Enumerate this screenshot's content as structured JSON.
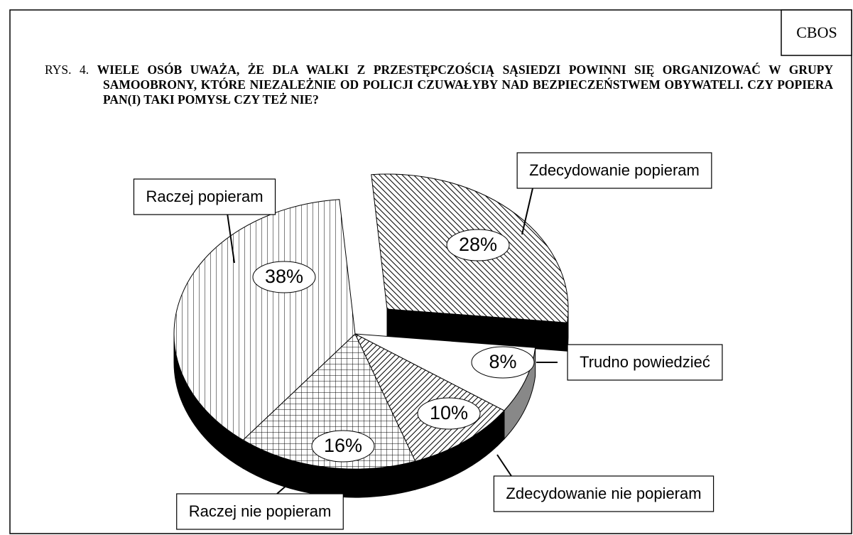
{
  "chart_data": {
    "type": "pie3d",
    "corner_label": "CBOS",
    "figure_label": "RYS. 4.",
    "title": "WIELE OSÓB UWAŻA, ŻE DLA WALKI Z PRZESTĘPCZOŚCIĄ SĄSIEDZI POWINNI SIĘ ORGANIZOWAĆ W GRUPY SAMOOBRONY, KTÓRE NIEZALEŻNIE OD POLICJI CZUWAŁYBY NAD BEZPIECZEŃSTWEM OBYWATELI. CZY POPIERA PAN(I) TAKI POMYSŁ CZY TEŻ NIE?",
    "categories": [
      "Zdecydowanie popieram",
      "Trudno powiedzieć",
      "Zdecydowanie nie popieram",
      "Raczej nie popieram",
      "Raczej popieram"
    ],
    "values": [
      28,
      8,
      10,
      16,
      38
    ],
    "value_labels": [
      "28%",
      "8%",
      "10%",
      "16%",
      "38%"
    ],
    "patterns": [
      "diagonal-back",
      "none",
      "diagonal",
      "grid",
      "vertical"
    ],
    "exploded": [
      true,
      false,
      false,
      false,
      false
    ]
  }
}
